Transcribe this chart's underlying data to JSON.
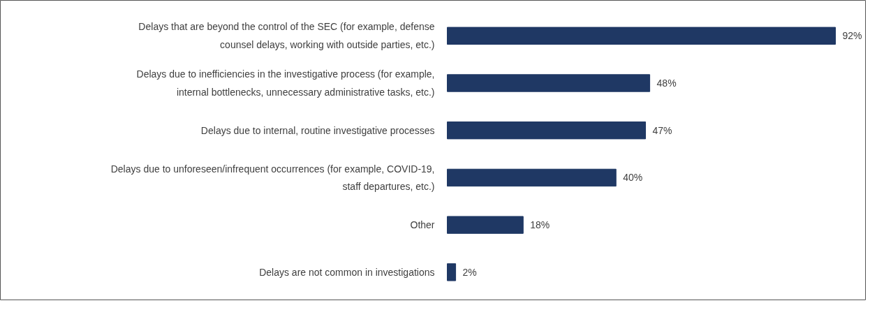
{
  "chart_data": {
    "type": "bar",
    "orientation": "horizontal",
    "categories": [
      "Delays that are beyond the control of the SEC (for example, defense counsel delays, working with outside parties, etc.)",
      "Delays due to inefficiencies in the investigative process (for example, internal bottlenecks, unnecessary administrative tasks, etc.)",
      "Delays due to internal, routine investigative processes",
      "Delays due to unforeseen/infrequent occurrences (for example, COVID-19, staff departures, etc.)",
      "Other",
      "Delays are not common in investigations"
    ],
    "values": [
      92,
      48,
      47,
      40,
      18,
      2
    ],
    "value_labels": [
      "92%",
      "48%",
      "47%",
      "40%",
      "18%",
      "2%"
    ],
    "color": "#1f3864",
    "grid": false
  }
}
